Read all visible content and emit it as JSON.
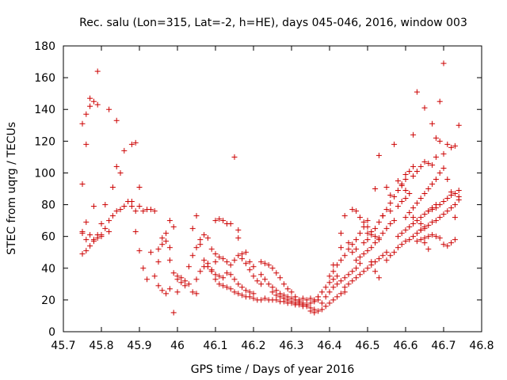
{
  "chart_data": {
    "type": "scatter",
    "title": "Rec. salu (Lon=315, Lat=-2, h=HE), days 045-046, 2016, window 003",
    "xlabel": "GPS time / Days of year 2016",
    "ylabel": "STEC from uqrg / TECUs",
    "xlim": [
      45.7,
      46.8
    ],
    "ylim": [
      0,
      180
    ],
    "xticks": [
      45.7,
      45.8,
      45.9,
      46,
      46.1,
      46.2,
      46.3,
      46.4,
      46.5,
      46.6,
      46.7,
      46.8
    ],
    "xtick_labels": [
      "45.7",
      "45.8",
      "45.9",
      "46",
      "46.1",
      "46.2",
      "46.3",
      "46.4",
      "46.5",
      "46.6",
      "46.7",
      "46.8"
    ],
    "yticks": [
      0,
      20,
      40,
      60,
      80,
      100,
      120,
      140,
      160,
      180
    ],
    "ytick_labels": [
      "0",
      "20",
      "40",
      "60",
      "80",
      "100",
      "120",
      "140",
      "160",
      "180"
    ],
    "grid": false,
    "marker": "+",
    "color": "#cc0000",
    "points": [
      [
        45.75,
        131
      ],
      [
        45.76,
        137
      ],
      [
        45.77,
        142
      ],
      [
        45.77,
        147
      ],
      [
        45.78,
        145
      ],
      [
        45.79,
        164
      ],
      [
        45.79,
        143
      ],
      [
        45.82,
        140
      ],
      [
        45.84,
        133
      ],
      [
        45.86,
        114
      ],
      [
        45.88,
        118
      ],
      [
        45.89,
        119
      ],
      [
        45.9,
        91
      ],
      [
        46.15,
        110
      ],
      [
        45.75,
        93
      ],
      [
        45.76,
        118
      ],
      [
        45.78,
        79
      ],
      [
        45.81,
        65
      ],
      [
        45.83,
        91
      ],
      [
        45.84,
        104
      ],
      [
        45.85,
        100
      ],
      [
        45.87,
        82
      ],
      [
        45.88,
        79
      ],
      [
        45.75,
        63
      ],
      [
        45.75,
        62
      ],
      [
        45.76,
        69
      ],
      [
        45.76,
        58
      ],
      [
        45.77,
        61
      ],
      [
        45.78,
        57
      ],
      [
        45.79,
        59
      ],
      [
        45.8,
        61
      ],
      [
        45.8,
        68
      ],
      [
        45.81,
        80
      ],
      [
        45.82,
        70
      ],
      [
        45.83,
        73
      ],
      [
        45.84,
        76
      ],
      [
        45.85,
        77
      ],
      [
        45.86,
        79
      ],
      [
        45.88,
        82
      ],
      [
        45.89,
        76
      ],
      [
        45.9,
        79
      ],
      [
        45.91,
        76
      ],
      [
        45.92,
        77
      ],
      [
        45.93,
        77
      ],
      [
        45.94,
        76
      ],
      [
        45.75,
        49
      ],
      [
        45.76,
        51
      ],
      [
        45.77,
        54
      ],
      [
        45.78,
        58
      ],
      [
        45.79,
        61
      ],
      [
        45.8,
        60
      ],
      [
        45.82,
        63
      ],
      [
        45.89,
        63
      ],
      [
        45.9,
        51
      ],
      [
        45.91,
        40
      ],
      [
        45.93,
        50
      ],
      [
        45.95,
        44
      ],
      [
        45.96,
        55
      ],
      [
        45.97,
        62
      ],
      [
        45.98,
        70
      ],
      [
        45.99,
        66
      ],
      [
        45.92,
        33
      ],
      [
        45.94,
        35
      ],
      [
        45.95,
        29
      ],
      [
        45.96,
        26
      ],
      [
        45.97,
        24
      ],
      [
        45.98,
        27
      ],
      [
        45.99,
        12
      ],
      [
        46.0,
        25
      ],
      [
        45.95,
        52
      ],
      [
        45.96,
        59
      ],
      [
        45.97,
        57
      ],
      [
        45.98,
        53
      ],
      [
        45.98,
        45
      ],
      [
        45.99,
        37
      ],
      [
        46.0,
        33
      ],
      [
        46.01,
        34
      ],
      [
        46.02,
        29
      ],
      [
        46.03,
        30
      ],
      [
        46.04,
        25
      ],
      [
        46.05,
        24
      ],
      [
        46.0,
        35
      ],
      [
        46.01,
        31
      ],
      [
        46.02,
        32
      ],
      [
        46.03,
        41
      ],
      [
        46.04,
        48
      ],
      [
        46.05,
        53
      ],
      [
        46.06,
        55
      ],
      [
        46.07,
        61
      ],
      [
        46.08,
        59
      ],
      [
        46.09,
        52
      ],
      [
        46.1,
        49
      ],
      [
        46.04,
        65
      ],
      [
        46.05,
        73
      ],
      [
        46.06,
        58
      ],
      [
        46.07,
        45
      ],
      [
        46.08,
        41
      ],
      [
        46.09,
        38
      ],
      [
        46.1,
        33
      ],
      [
        46.11,
        30
      ],
      [
        46.12,
        29
      ],
      [
        46.13,
        28
      ],
      [
        46.14,
        27
      ],
      [
        46.1,
        70
      ],
      [
        46.11,
        71
      ],
      [
        46.12,
        70
      ],
      [
        46.13,
        68
      ],
      [
        46.14,
        68
      ],
      [
        46.16,
        64
      ],
      [
        46.16,
        59
      ],
      [
        46.17,
        49
      ],
      [
        46.18,
        50
      ],
      [
        46.19,
        44
      ],
      [
        46.2,
        41
      ],
      [
        46.1,
        44
      ],
      [
        46.11,
        47
      ],
      [
        46.12,
        46
      ],
      [
        46.13,
        44
      ],
      [
        46.14,
        42
      ],
      [
        46.15,
        45
      ],
      [
        46.16,
        48
      ],
      [
        46.17,
        46
      ],
      [
        46.18,
        43
      ],
      [
        46.19,
        39
      ],
      [
        46.2,
        35
      ],
      [
        46.21,
        32
      ],
      [
        46.22,
        30
      ],
      [
        46.05,
        33
      ],
      [
        46.06,
        38
      ],
      [
        46.07,
        41
      ],
      [
        46.08,
        43
      ],
      [
        46.09,
        39
      ],
      [
        46.1,
        36
      ],
      [
        46.11,
        35
      ],
      [
        46.12,
        34
      ],
      [
        46.13,
        37
      ],
      [
        46.14,
        36
      ],
      [
        46.15,
        33
      ],
      [
        46.16,
        30
      ],
      [
        46.17,
        28
      ],
      [
        46.18,
        26
      ],
      [
        46.19,
        25
      ],
      [
        46.2,
        24
      ],
      [
        46.15,
        25
      ],
      [
        46.16,
        24
      ],
      [
        46.17,
        23
      ],
      [
        46.18,
        22
      ],
      [
        46.19,
        22
      ],
      [
        46.2,
        21
      ],
      [
        46.21,
        20
      ],
      [
        46.22,
        20
      ],
      [
        46.23,
        21
      ],
      [
        46.24,
        20
      ],
      [
        46.25,
        20
      ],
      [
        46.22,
        44
      ],
      [
        46.23,
        43
      ],
      [
        46.24,
        42
      ],
      [
        46.25,
        40
      ],
      [
        46.26,
        37
      ],
      [
        46.27,
        34
      ],
      [
        46.28,
        30
      ],
      [
        46.29,
        27
      ],
      [
        46.3,
        25
      ],
      [
        46.31,
        22
      ],
      [
        46.32,
        20
      ],
      [
        46.22,
        36
      ],
      [
        46.23,
        33
      ],
      [
        46.24,
        30
      ],
      [
        46.25,
        28
      ],
      [
        46.26,
        26
      ],
      [
        46.27,
        24
      ],
      [
        46.28,
        23
      ],
      [
        46.29,
        22
      ],
      [
        46.3,
        21
      ],
      [
        46.31,
        20
      ],
      [
        46.32,
        19
      ],
      [
        46.33,
        18
      ],
      [
        46.25,
        25
      ],
      [
        46.26,
        23
      ],
      [
        46.27,
        22
      ],
      [
        46.28,
        21
      ],
      [
        46.29,
        20
      ],
      [
        46.3,
        19
      ],
      [
        46.31,
        18
      ],
      [
        46.32,
        18
      ],
      [
        46.33,
        17
      ],
      [
        46.34,
        16
      ],
      [
        46.35,
        15
      ],
      [
        46.36,
        14
      ],
      [
        46.26,
        20
      ],
      [
        46.27,
        19
      ],
      [
        46.28,
        19
      ],
      [
        46.29,
        18
      ],
      [
        46.3,
        18
      ],
      [
        46.31,
        17
      ],
      [
        46.32,
        17
      ],
      [
        46.33,
        16
      ],
      [
        46.34,
        17
      ],
      [
        46.35,
        18
      ],
      [
        46.36,
        19
      ],
      [
        46.37,
        20
      ],
      [
        46.33,
        21
      ],
      [
        46.34,
        20
      ],
      [
        46.35,
        21
      ],
      [
        46.36,
        20
      ],
      [
        46.37,
        22
      ],
      [
        46.38,
        25
      ],
      [
        46.39,
        28
      ],
      [
        46.4,
        31
      ],
      [
        46.41,
        33
      ],
      [
        46.42,
        35
      ],
      [
        46.35,
        13
      ],
      [
        46.36,
        12
      ],
      [
        46.37,
        13
      ],
      [
        46.38,
        14
      ],
      [
        46.39,
        16
      ],
      [
        46.4,
        18
      ],
      [
        46.41,
        20
      ],
      [
        46.42,
        22
      ],
      [
        46.43,
        24
      ],
      [
        46.44,
        25
      ],
      [
        46.38,
        18
      ],
      [
        46.39,
        22
      ],
      [
        46.4,
        25
      ],
      [
        46.41,
        28
      ],
      [
        46.42,
        30
      ],
      [
        46.43,
        32
      ],
      [
        46.44,
        34
      ],
      [
        46.45,
        36
      ],
      [
        46.46,
        38
      ],
      [
        46.47,
        40
      ],
      [
        46.4,
        35
      ],
      [
        46.41,
        38
      ],
      [
        46.42,
        42
      ],
      [
        46.43,
        45
      ],
      [
        46.44,
        48
      ],
      [
        46.45,
        52
      ],
      [
        46.46,
        55
      ],
      [
        46.47,
        58
      ],
      [
        46.48,
        62
      ],
      [
        46.49,
        66
      ],
      [
        46.5,
        70
      ],
      [
        46.43,
        62
      ],
      [
        46.44,
        73
      ],
      [
        46.46,
        77
      ],
      [
        46.47,
        76
      ],
      [
        46.48,
        72
      ],
      [
        46.49,
        69
      ],
      [
        46.5,
        66
      ],
      [
        46.51,
        63
      ],
      [
        46.52,
        60
      ],
      [
        46.53,
        58
      ],
      [
        46.44,
        28
      ],
      [
        46.45,
        30
      ],
      [
        46.46,
        32
      ],
      [
        46.47,
        34
      ],
      [
        46.48,
        36
      ],
      [
        46.49,
        38
      ],
      [
        46.5,
        40
      ],
      [
        46.51,
        42
      ],
      [
        46.52,
        44
      ],
      [
        46.53,
        46
      ],
      [
        46.54,
        48
      ],
      [
        46.55,
        50
      ],
      [
        46.47,
        45
      ],
      [
        46.48,
        47
      ],
      [
        46.49,
        49
      ],
      [
        46.5,
        51
      ],
      [
        46.51,
        53
      ],
      [
        46.52,
        56
      ],
      [
        46.53,
        59
      ],
      [
        46.54,
        62
      ],
      [
        46.55,
        65
      ],
      [
        46.56,
        68
      ],
      [
        46.57,
        70
      ],
      [
        46.5,
        58
      ],
      [
        46.51,
        61
      ],
      [
        46.52,
        65
      ],
      [
        46.53,
        69
      ],
      [
        46.54,
        73
      ],
      [
        46.55,
        77
      ],
      [
        46.56,
        81
      ],
      [
        46.57,
        85
      ],
      [
        46.58,
        89
      ],
      [
        46.59,
        93
      ],
      [
        46.6,
        96
      ],
      [
        46.52,
        90
      ],
      [
        46.53,
        111
      ],
      [
        46.55,
        91
      ],
      [
        46.56,
        86
      ],
      [
        46.57,
        118
      ],
      [
        46.58,
        95
      ],
      [
        46.59,
        92
      ],
      [
        46.6,
        99
      ],
      [
        46.61,
        101
      ],
      [
        46.62,
        104
      ],
      [
        46.55,
        45
      ],
      [
        46.56,
        48
      ],
      [
        46.57,
        50
      ],
      [
        46.58,
        53
      ],
      [
        46.59,
        55
      ],
      [
        46.6,
        57
      ],
      [
        46.61,
        58
      ],
      [
        46.62,
        60
      ],
      [
        46.63,
        62
      ],
      [
        46.64,
        64
      ],
      [
        46.65,
        66
      ],
      [
        46.58,
        60
      ],
      [
        46.59,
        62
      ],
      [
        46.6,
        64
      ],
      [
        46.61,
        66
      ],
      [
        46.62,
        68
      ],
      [
        46.63,
        70
      ],
      [
        46.64,
        72
      ],
      [
        46.65,
        74
      ],
      [
        46.66,
        76
      ],
      [
        46.67,
        78
      ],
      [
        46.68,
        80
      ],
      [
        46.6,
        72
      ],
      [
        46.61,
        75
      ],
      [
        46.62,
        78
      ],
      [
        46.63,
        81
      ],
      [
        46.64,
        84
      ],
      [
        46.65,
        87
      ],
      [
        46.66,
        90
      ],
      [
        46.67,
        93
      ],
      [
        46.68,
        96
      ],
      [
        46.69,
        100
      ],
      [
        46.7,
        103
      ],
      [
        46.62,
        124
      ],
      [
        46.63,
        151
      ],
      [
        46.65,
        141
      ],
      [
        46.67,
        131
      ],
      [
        46.69,
        145
      ],
      [
        46.7,
        169
      ],
      [
        46.68,
        122
      ],
      [
        46.71,
        118
      ],
      [
        46.72,
        116
      ],
      [
        46.73,
        117
      ],
      [
        46.74,
        130
      ],
      [
        46.62,
        98
      ],
      [
        46.63,
        101
      ],
      [
        46.64,
        104
      ],
      [
        46.65,
        107
      ],
      [
        46.66,
        106
      ],
      [
        46.67,
        105
      ],
      [
        46.68,
        110
      ],
      [
        46.69,
        120
      ],
      [
        46.7,
        112
      ],
      [
        46.71,
        96
      ],
      [
        46.72,
        88
      ],
      [
        46.63,
        57
      ],
      [
        46.64,
        58
      ],
      [
        46.65,
        59
      ],
      [
        46.66,
        60
      ],
      [
        46.67,
        61
      ],
      [
        46.68,
        60
      ],
      [
        46.69,
        59
      ],
      [
        46.7,
        55
      ],
      [
        46.71,
        54
      ],
      [
        46.72,
        56
      ],
      [
        46.73,
        58
      ],
      [
        46.64,
        64
      ],
      [
        46.65,
        65
      ],
      [
        46.66,
        67
      ],
      [
        46.67,
        69
      ],
      [
        46.68,
        70
      ],
      [
        46.69,
        72
      ],
      [
        46.7,
        74
      ],
      [
        46.71,
        76
      ],
      [
        46.72,
        78
      ],
      [
        46.73,
        80
      ],
      [
        46.74,
        83
      ],
      [
        46.66,
        76
      ],
      [
        46.67,
        77
      ],
      [
        46.68,
        78
      ],
      [
        46.69,
        80
      ],
      [
        46.7,
        82
      ],
      [
        46.71,
        84
      ],
      [
        46.72,
        86
      ],
      [
        46.73,
        87
      ],
      [
        46.74,
        85
      ],
      [
        46.74,
        89
      ],
      [
        46.73,
        72
      ],
      [
        46.51,
        44
      ],
      [
        46.52,
        38
      ],
      [
        46.53,
        34
      ],
      [
        46.48,
        43
      ],
      [
        46.46,
        50
      ],
      [
        46.45,
        56
      ],
      [
        46.43,
        53
      ],
      [
        46.41,
        42
      ],
      [
        46.47,
        52
      ],
      [
        46.49,
        56
      ],
      [
        46.5,
        62
      ],
      [
        46.54,
        73
      ],
      [
        46.56,
        76
      ],
      [
        46.58,
        79
      ],
      [
        46.59,
        82
      ],
      [
        46.6,
        84
      ],
      [
        46.61,
        87
      ],
      [
        46.6,
        89
      ],
      [
        46.62,
        72
      ],
      [
        46.64,
        68
      ],
      [
        46.66,
        52
      ],
      [
        46.65,
        56
      ]
    ]
  }
}
